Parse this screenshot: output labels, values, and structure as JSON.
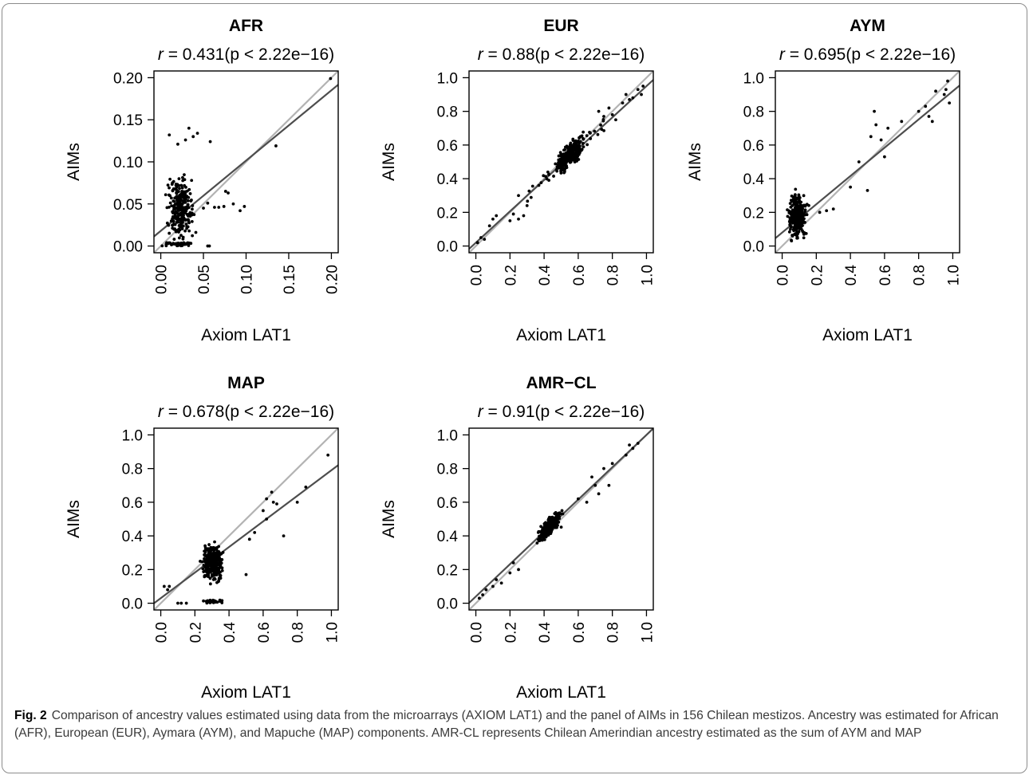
{
  "caption": {
    "label": "Fig. 2",
    "text": "Comparison of ancestry values estimated using data from the microarrays (AXIOM LAT1) and the panel of AIMs in 156 Chilean mestizos. Ancestry was estimated for African (AFR), European (EUR), Aymara (AYM), and Mapuche (MAP) components. AMR-CL represents Chilean Amerindian ancestry estimated as the sum of AYM and MAP"
  },
  "colors": {
    "points": "#000000",
    "identity_line": "#b3b3b3",
    "fit_line": "#4d4d4d",
    "frame": "#8c8c8c"
  },
  "chart_data": [
    {
      "type": "scatter",
      "title": "AFR",
      "subtitle_r": "0.431",
      "subtitle_p": "(p < 2.22e−16)",
      "xlabel": "Axiom LAT1",
      "ylabel": "AIMs",
      "xlim": [
        0,
        0.2
      ],
      "ylim": [
        0,
        0.2
      ],
      "xticks": [
        "0.00",
        "0.05",
        "0.10",
        "0.15",
        "0.20"
      ],
      "yticks": [
        "0.00",
        "0.05",
        "0.10",
        "0.15",
        "0.20"
      ],
      "identity_line": true,
      "fit_line": {
        "intercept": 0.018,
        "slope": 0.835
      },
      "points_note": "scatter cloud mostly x 0.0-0.06, y 0.0-0.13; outliers listed",
      "points": [
        [
          0.135,
          0.119
        ],
        [
          0.098,
          0.047
        ],
        [
          0.093,
          0.042
        ],
        [
          0.085,
          0.05
        ],
        [
          0.079,
          0.063
        ],
        [
          0.076,
          0.065
        ],
        [
          0.074,
          0.047
        ],
        [
          0.068,
          0.046
        ],
        [
          0.063,
          0.046
        ],
        [
          0.058,
          0.124
        ],
        [
          0.055,
          0.051
        ],
        [
          0.05,
          0.045
        ],
        [
          0.057,
          0.0
        ],
        [
          0.055,
          0.0
        ],
        [
          0.033,
          0.14
        ],
        [
          0.038,
          0.13
        ],
        [
          0.043,
          0.134
        ],
        [
          0.029,
          0.126
        ],
        [
          0.02,
          0.121
        ],
        [
          0.01,
          0.132
        ],
        [
          0.199,
          0.199
        ]
      ]
    },
    {
      "type": "scatter",
      "title": "EUR",
      "subtitle_r": "0.88",
      "subtitle_p": "(p < 2.22e−16)",
      "xlabel": "Axiom LAT1",
      "ylabel": "AIMs",
      "xlim": [
        0,
        1
      ],
      "ylim": [
        0,
        1
      ],
      "xticks": [
        "0.0",
        "0.2",
        "0.4",
        "0.6",
        "0.8",
        "1.0"
      ],
      "yticks": [
        "0.0",
        "0.2",
        "0.4",
        "0.6",
        "0.8",
        "1.0"
      ],
      "identity_line": true,
      "fit_line": {
        "intercept": 0.02,
        "slope": 0.93
      },
      "points_note": "dense cluster around x 0.45-0.7, y 0.35-0.75",
      "points": [
        [
          0.01,
          0.02
        ],
        [
          0.03,
          0.05
        ],
        [
          0.05,
          0.04
        ],
        [
          0.08,
          0.12
        ],
        [
          0.1,
          0.16
        ],
        [
          0.12,
          0.18
        ],
        [
          0.2,
          0.15
        ],
        [
          0.22,
          0.19
        ],
        [
          0.25,
          0.16
        ],
        [
          0.28,
          0.18
        ],
        [
          0.3,
          0.24
        ],
        [
          0.25,
          0.3
        ],
        [
          0.78,
          0.82
        ],
        [
          0.82,
          0.75
        ],
        [
          0.86,
          0.85
        ],
        [
          0.88,
          0.9
        ],
        [
          0.9,
          0.87
        ],
        [
          0.92,
          0.88
        ],
        [
          0.95,
          0.93
        ],
        [
          0.97,
          0.9
        ],
        [
          0.98,
          0.95
        ],
        [
          0.72,
          0.8
        ],
        [
          0.75,
          0.77
        ],
        [
          0.8,
          0.78
        ]
      ]
    },
    {
      "type": "scatter",
      "title": "AYM",
      "subtitle_r": "0.695",
      "subtitle_p": "(p < 2.22e−16)",
      "xlabel": "Axiom LAT1",
      "ylabel": "AIMs",
      "xlim": [
        0,
        1
      ],
      "ylim": [
        0,
        1
      ],
      "xticks": [
        "0.0",
        "0.2",
        "0.4",
        "0.6",
        "0.8",
        "1.0"
      ],
      "yticks": [
        "0.0",
        "0.2",
        "0.4",
        "0.6",
        "0.8",
        "1.0"
      ],
      "identity_line": true,
      "fit_line": {
        "intercept": 0.08,
        "slope": 0.84
      },
      "points_note": "dense cluster x 0.0-0.2, y 0.0-0.55; outliers listed",
      "points": [
        [
          0.22,
          0.2
        ],
        [
          0.26,
          0.21
        ],
        [
          0.3,
          0.22
        ],
        [
          0.4,
          0.35
        ],
        [
          0.45,
          0.5
        ],
        [
          0.5,
          0.33
        ],
        [
          0.52,
          0.65
        ],
        [
          0.54,
          0.8
        ],
        [
          0.55,
          0.72
        ],
        [
          0.58,
          0.63
        ],
        [
          0.6,
          0.53
        ],
        [
          0.62,
          0.7
        ],
        [
          0.7,
          0.74
        ],
        [
          0.8,
          0.8
        ],
        [
          0.84,
          0.83
        ],
        [
          0.86,
          0.77
        ],
        [
          0.88,
          0.74
        ],
        [
          0.9,
          0.92
        ],
        [
          0.95,
          0.9
        ],
        [
          0.97,
          0.98
        ],
        [
          0.98,
          0.85
        ],
        [
          0.96,
          0.93
        ]
      ]
    },
    {
      "type": "scatter",
      "title": "MAP",
      "subtitle_r": "0.678",
      "subtitle_p": "(p < 2.22e−16)",
      "xlabel": "Axiom LAT1",
      "ylabel": "AIMs",
      "xlim": [
        0,
        1
      ],
      "ylim": [
        0,
        1
      ],
      "xticks": [
        "0.0",
        "0.2",
        "0.4",
        "0.6",
        "0.8",
        "1.0"
      ],
      "yticks": [
        "0.0",
        "0.2",
        "0.4",
        "0.6",
        "0.8",
        "1.0"
      ],
      "identity_line": true,
      "fit_line": {
        "intercept": 0.03,
        "slope": 0.76
      },
      "points_note": "dense cluster x 0.2-0.45, y 0.0-0.5; outliers listed",
      "points": [
        [
          0.02,
          0.1
        ],
        [
          0.04,
          0.08
        ],
        [
          0.05,
          0.1
        ],
        [
          0.1,
          0.0
        ],
        [
          0.12,
          0.0
        ],
        [
          0.15,
          0.0
        ],
        [
          0.5,
          0.17
        ],
        [
          0.52,
          0.38
        ],
        [
          0.55,
          0.42
        ],
        [
          0.6,
          0.55
        ],
        [
          0.62,
          0.5
        ],
        [
          0.62,
          0.62
        ],
        [
          0.65,
          0.66
        ],
        [
          0.66,
          0.6
        ],
        [
          0.68,
          0.59
        ],
        [
          0.72,
          0.4
        ],
        [
          0.85,
          0.69
        ],
        [
          0.8,
          0.6
        ],
        [
          0.98,
          0.88
        ]
      ]
    },
    {
      "type": "scatter",
      "title": "AMR−CL",
      "subtitle_r": "0.91",
      "subtitle_p": "(p < 2.22e−16)",
      "xlabel": "Axiom LAT1",
      "ylabel": "AIMs",
      "xlim": [
        0,
        1
      ],
      "ylim": [
        0,
        1
      ],
      "xticks": [
        "0.0",
        "0.2",
        "0.4",
        "0.6",
        "0.8",
        "1.0"
      ],
      "yticks": [
        "0.0",
        "0.2",
        "0.4",
        "0.6",
        "0.8",
        "1.0"
      ],
      "identity_line": true,
      "fit_line": {
        "intercept": 0.04,
        "slope": 0.96
      },
      "points_note": "dense cluster x 0.3-0.55, y 0.3-0.6",
      "points": [
        [
          0.02,
          0.03
        ],
        [
          0.04,
          0.05
        ],
        [
          0.06,
          0.08
        ],
        [
          0.1,
          0.1
        ],
        [
          0.12,
          0.14
        ],
        [
          0.15,
          0.12
        ],
        [
          0.2,
          0.18
        ],
        [
          0.22,
          0.24
        ],
        [
          0.25,
          0.2
        ],
        [
          0.6,
          0.62
        ],
        [
          0.65,
          0.6
        ],
        [
          0.68,
          0.75
        ],
        [
          0.7,
          0.7
        ],
        [
          0.72,
          0.65
        ],
        [
          0.75,
          0.8
        ],
        [
          0.78,
          0.7
        ],
        [
          0.8,
          0.83
        ],
        [
          0.88,
          0.88
        ],
        [
          0.9,
          0.94
        ],
        [
          0.92,
          0.92
        ],
        [
          0.95,
          0.95
        ]
      ]
    }
  ]
}
